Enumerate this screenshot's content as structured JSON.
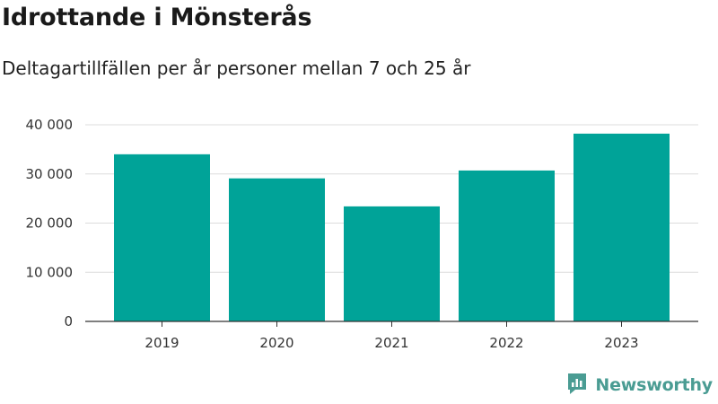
{
  "title": "Idrottande i Mönsterås",
  "subtitle": "Deltagartillfällen per år personer mellan 7 och 25 år",
  "brand": {
    "name": "Newsworthy",
    "icon": "newsworthy-logo-icon",
    "color": "#4a9c93"
  },
  "chart_data": {
    "type": "bar",
    "categories": [
      "2019",
      "2020",
      "2021",
      "2022",
      "2023"
    ],
    "values": [
      34000,
      29100,
      23400,
      30700,
      38200
    ],
    "ylim": [
      0,
      40000
    ],
    "yticks": [
      0,
      10000,
      20000,
      30000,
      40000
    ],
    "ytick_labels": [
      "0",
      "10 000",
      "20 000",
      "30 000",
      "40 000"
    ],
    "grid": true,
    "bar_color": "#00a398",
    "xlabel": "",
    "ylabel": ""
  }
}
